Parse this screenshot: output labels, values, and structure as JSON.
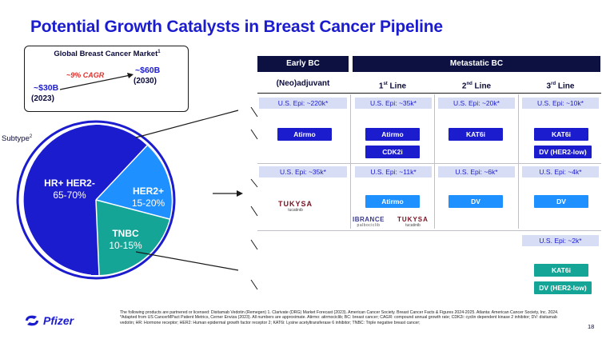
{
  "title": "Potential Growth Catalysts in Breast Cancer Pipeline",
  "market": {
    "title": "Global Breast Cancer Market",
    "title_sup": "1",
    "low_value": "~$30B",
    "low_year": "(2023)",
    "high_value": "~$60B",
    "high_year": "(2030)",
    "cagr": "~9% CAGR"
  },
  "subtype": {
    "label": "Subtype",
    "sup": "2"
  },
  "pie": {
    "slices": [
      {
        "name": "HR+ HER2-",
        "pct": "65-70%",
        "color": "#1c1ccf"
      },
      {
        "name": "HER2+",
        "pct": "15-20%",
        "color": "#1e90ff"
      },
      {
        "name": "TNBC",
        "pct": "10-15%",
        "color": "#14a597"
      }
    ]
  },
  "columns": {
    "early": "Early BC",
    "metastatic": "Metastatic BC",
    "neoadj": "(Neo)adjuvant",
    "first_line": "1",
    "first_line_sup": "st",
    "first_line_suffix": " Line",
    "second_line": "2",
    "second_line_sup": "nd",
    "second_line_suffix": " Line",
    "third_line": "3",
    "third_line_sup": "rd",
    "third_line_suffix": " Line"
  },
  "rows": {
    "hr": {
      "epi": [
        "U.S. Epi: ~220k*",
        "U.S. Epi: ~35k*",
        "U.S. Epi: ~20k*",
        "U.S. Epi: ~10k*"
      ],
      "neoadj": [
        "Atirmo"
      ],
      "first": [
        "Atirmo",
        "CDK2i"
      ],
      "second": [
        "KAT6i"
      ],
      "third": [
        "KAT6i",
        "DV (HER2-low)"
      ]
    },
    "her2": {
      "epi": [
        "U.S. Epi: ~35k*",
        "U.S. Epi: ~11k*",
        "U.S. Epi: ~6k*",
        "U.S. Epi: ~4k*"
      ],
      "first": [
        "Atirmo"
      ],
      "second": [
        "DV"
      ],
      "third": [
        "DV"
      ],
      "tukysa": "TUKYSA",
      "tukysa_sub": "tucatinib",
      "ibrance": "IBRANCE",
      "ibrance_sub": "palbociclib"
    },
    "tnbc": {
      "epi": [
        "U.S. Epi: ~2k*"
      ],
      "third": [
        "KAT6i",
        "DV (HER2-low)"
      ]
    }
  },
  "footnote": "The following products are partnered or licensed: Disitamab Vedotin (Remegen) 1. Clarivate (DRG) Market Forecast (2023). American Cancer Society. Breast Cancer Facts & Figures 2024-2025. Atlanta: American Cancer Society, Inc. 2024. *Adapted from US CancerMPact Patient Metrics, Cerner Enviza (2023). All numbers are approximate. Atirmo: atirmociclib; BC: breast cancer; CAGR: compound annual growth rate; CDK2i: cyclin dependent kinase 2 inhibitor; DV: disitamab vedotin; HR: Hormone receptor; HER2: Human epidermal growth factor receptor 2; KAT6i: Lysine acetyltransferase 6 inhibitor; TNBC: Triple negative breast cancer;",
  "page_number": "18",
  "brand": "Pfizer"
}
